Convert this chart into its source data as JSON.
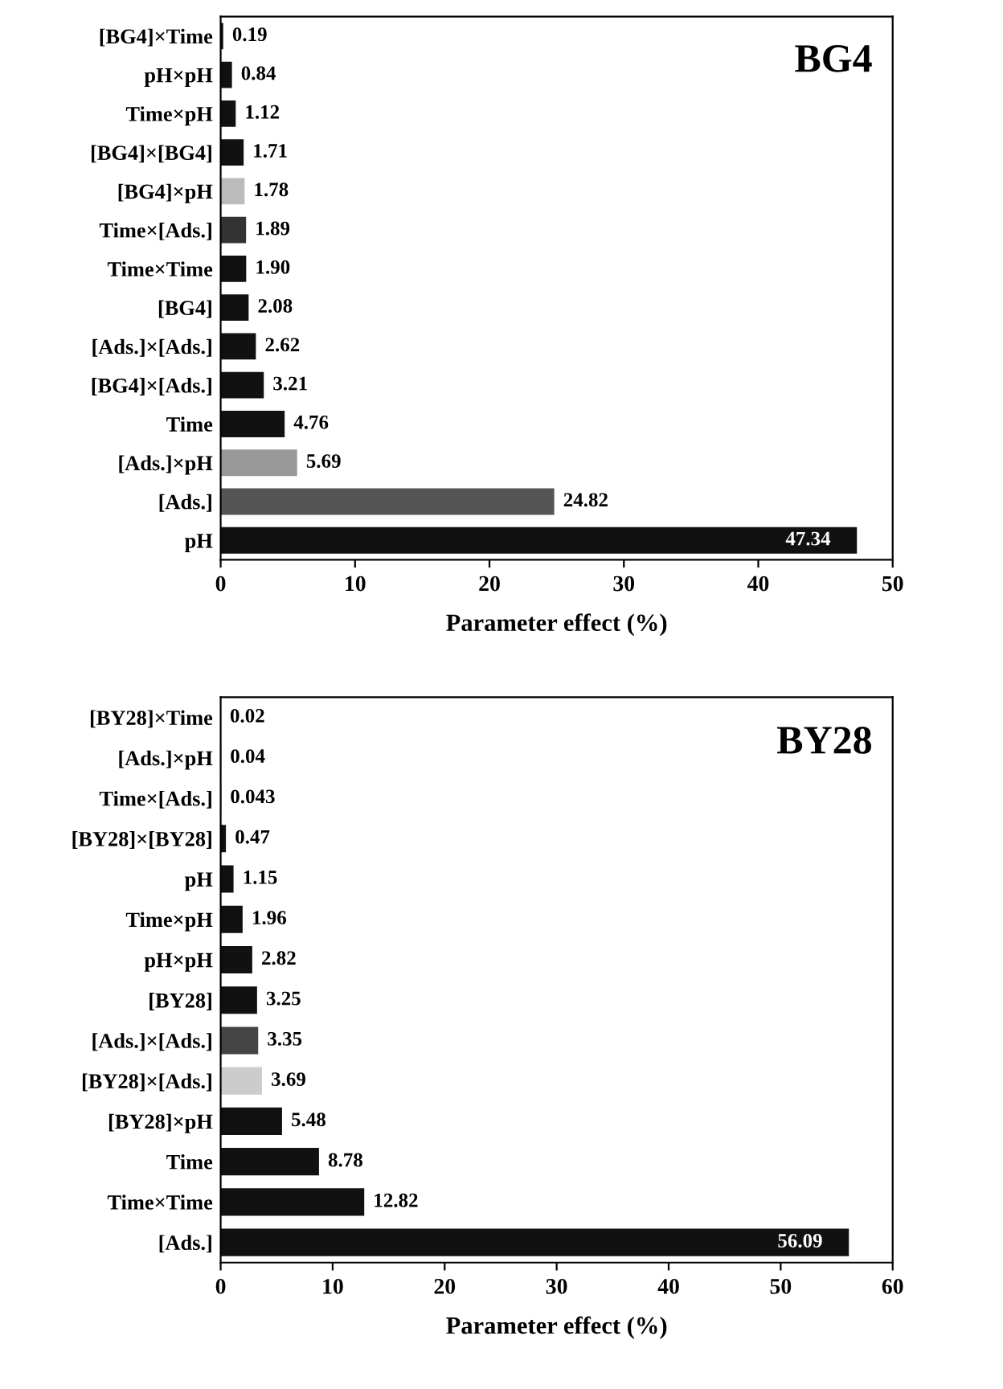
{
  "chart_data": [
    {
      "type": "bar",
      "orientation": "horizontal",
      "title": "BG4",
      "xlabel": "Parameter effect (%)",
      "categories": [
        "[BG4]×Time",
        "pH×pH",
        "Time×pH",
        "[BG4]×[BG4]",
        "[BG4]×pH",
        "Time×[Ads.]",
        "Time×Time",
        "[BG4]",
        "[Ads.]×[Ads.]",
        "[BG4]×[Ads.]",
        "Time",
        "[Ads.]×pH",
        "[Ads.]",
        "pH"
      ],
      "values": [
        0.19,
        0.84,
        1.12,
        1.71,
        1.78,
        1.89,
        1.9,
        2.08,
        2.62,
        3.21,
        4.76,
        5.69,
        24.82,
        47.34
      ],
      "value_labels": [
        "0.19",
        "0.84",
        "1.12",
        "1.71",
        "1.78",
        "1.89",
        "1.90",
        "2.08",
        "2.62",
        "3.21",
        "4.76",
        "5.69",
        "24.82",
        "47.34"
      ],
      "colors": [
        "#111111",
        "#111111",
        "#111111",
        "#111111",
        "#bbbbbb",
        "#333333",
        "#111111",
        "#111111",
        "#111111",
        "#111111",
        "#111111",
        "#999999",
        "#555555",
        "#111111"
      ],
      "xlim": [
        0,
        50
      ],
      "xticks": [
        0,
        10,
        20,
        30,
        40,
        50
      ],
      "grid": false
    },
    {
      "type": "bar",
      "orientation": "horizontal",
      "title": "BY28",
      "xlabel": "Parameter effect (%)",
      "categories": [
        "[BY28]×Time",
        "[Ads.]×pH",
        "Time×[Ads.]",
        "[BY28]×[BY28]",
        "pH",
        "Time×pH",
        "pH×pH",
        "[BY28]",
        "[Ads.]×[Ads.]",
        "[BY28]×[Ads.]",
        "[BY28]×pH",
        "Time",
        "Time×Time",
        "[Ads.]"
      ],
      "values": [
        0.02,
        0.04,
        0.043,
        0.47,
        1.15,
        1.96,
        2.82,
        3.25,
        3.35,
        3.69,
        5.48,
        8.78,
        12.82,
        56.09
      ],
      "value_labels": [
        "0.02",
        "0.04",
        "0.043",
        "0.47",
        "1.15",
        "1.96",
        "2.82",
        "3.25",
        "3.35",
        "3.69",
        "5.48",
        "8.78",
        "12.82",
        "56.09"
      ],
      "colors": [
        "#111111",
        "#111111",
        "#111111",
        "#111111",
        "#111111",
        "#111111",
        "#111111",
        "#111111",
        "#444444",
        "#cccccc",
        "#111111",
        "#111111",
        "#111111",
        "#111111"
      ],
      "xlim": [
        0,
        60
      ],
      "xticks": [
        0,
        10,
        20,
        30,
        40,
        50,
        60
      ],
      "grid": false
    }
  ]
}
